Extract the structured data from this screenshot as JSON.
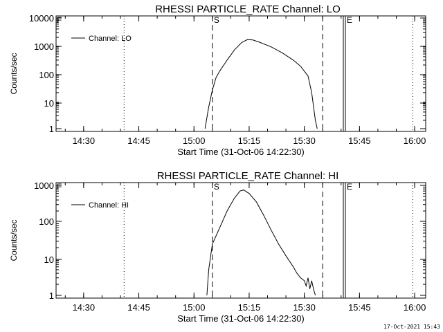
{
  "footer_timestamp": "17-Oct-2021 15:43",
  "chart_data": [
    {
      "type": "line",
      "title": "RHESSI PARTICLE_RATE Channel: LO",
      "xlabel": "Start Time (31-Oct-06 14:22:30)",
      "ylabel": "Counts/sec",
      "y_scale": "log",
      "xlim": [
        "14:22:30",
        "16:03:00"
      ],
      "ylim": [
        1,
        10000
      ],
      "x_ticks": [
        "14:30",
        "14:45",
        "15:00",
        "15:15",
        "15:30",
        "15:45",
        "16:00"
      ],
      "y_ticks": [
        "1",
        "10",
        "100",
        "1000",
        "10000"
      ],
      "legend": {
        "position": "top-left",
        "label": "Channel: LO"
      },
      "markers": [
        {
          "label": "",
          "time": "14:41:00",
          "style": "dotted"
        },
        {
          "label": "S",
          "time": "15:05:00",
          "style": "dashed"
        },
        {
          "label": "",
          "time": "15:35:00",
          "style": "dashed"
        },
        {
          "label": "E",
          "time": "15:41:10",
          "style": "solid"
        },
        {
          "label": "",
          "time": "15:59:30",
          "style": "dotted"
        }
      ],
      "series": [
        {
          "name": "Channel: LO",
          "points": [
            [
              "15:03:00",
              1
            ],
            [
              "15:04:00",
              6
            ],
            [
              "15:05:00",
              25
            ],
            [
              "15:06:00",
              70
            ],
            [
              "15:07:00",
              120
            ],
            [
              "15:09:00",
              300
            ],
            [
              "15:11:00",
              700
            ],
            [
              "15:13:00",
              1300
            ],
            [
              "15:14:30",
              1650
            ],
            [
              "15:16:00",
              1600
            ],
            [
              "15:18:00",
              1300
            ],
            [
              "15:21:00",
              900
            ],
            [
              "15:24:00",
              550
            ],
            [
              "15:27:00",
              300
            ],
            [
              "15:29:00",
              180
            ],
            [
              "15:31:00",
              80
            ],
            [
              "15:32:00",
              20
            ],
            [
              "15:33:00",
              2
            ],
            [
              "15:33:30",
              1
            ]
          ]
        }
      ]
    },
    {
      "type": "line",
      "title": "RHESSI PARTICLE_RATE Channel: HI",
      "xlabel": "Start Time (31-Oct-06 14:22:30)",
      "ylabel": "Counts/sec",
      "y_scale": "log",
      "xlim": [
        "14:22:30",
        "16:03:00"
      ],
      "ylim": [
        1,
        1000
      ],
      "x_ticks": [
        "14:30",
        "14:45",
        "15:00",
        "15:15",
        "15:30",
        "15:45",
        "16:00"
      ],
      "y_ticks": [
        "1",
        "10",
        "100",
        "1000"
      ],
      "legend": {
        "position": "top-left",
        "label": "Channel: HI"
      },
      "markers": [
        {
          "label": "",
          "time": "14:41:00",
          "style": "dotted"
        },
        {
          "label": "S",
          "time": "15:05:00",
          "style": "dashed"
        },
        {
          "label": "",
          "time": "15:35:00",
          "style": "dashed"
        },
        {
          "label": "E",
          "time": "15:41:10",
          "style": "solid"
        },
        {
          "label": "",
          "time": "15:59:30",
          "style": "dotted"
        }
      ],
      "series": [
        {
          "name": "Channel: HI",
          "points": [
            [
              "15:03:30",
              1
            ],
            [
              "15:04:00",
              5
            ],
            [
              "15:05:00",
              25
            ],
            [
              "15:07:00",
              70
            ],
            [
              "15:09:00",
              200
            ],
            [
              "15:11:00",
              450
            ],
            [
              "15:12:30",
              700
            ],
            [
              "15:13:30",
              750
            ],
            [
              "15:15:00",
              600
            ],
            [
              "15:17:00",
              350
            ],
            [
              "15:19:00",
              150
            ],
            [
              "15:21:00",
              60
            ],
            [
              "15:23:00",
              25
            ],
            [
              "15:25:00",
              12
            ],
            [
              "15:27:00",
              6
            ],
            [
              "15:28:00",
              4
            ],
            [
              "15:29:00",
              3
            ],
            [
              "15:30:00",
              2.5
            ],
            [
              "15:30:30",
              1.8
            ],
            [
              "15:31:00",
              3
            ],
            [
              "15:31:30",
              1.5
            ],
            [
              "15:32:00",
              2.5
            ],
            [
              "15:32:30",
              1.5
            ],
            [
              "15:33:00",
              1
            ]
          ]
        }
      ]
    }
  ]
}
